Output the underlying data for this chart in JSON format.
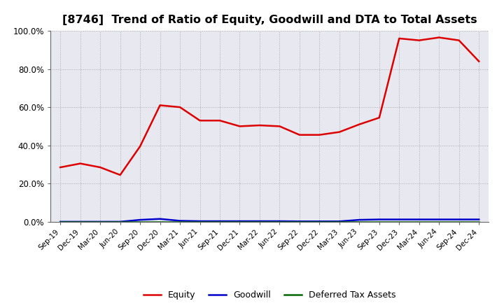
{
  "title": "[8746]  Trend of Ratio of Equity, Goodwill and DTA to Total Assets",
  "x_labels": [
    "Sep-19",
    "Dec-19",
    "Mar-20",
    "Jun-20",
    "Sep-20",
    "Dec-20",
    "Mar-21",
    "Jun-21",
    "Sep-21",
    "Dec-21",
    "Mar-22",
    "Jun-22",
    "Sep-22",
    "Dec-22",
    "Mar-23",
    "Jun-23",
    "Sep-23",
    "Dec-23",
    "Mar-24",
    "Jun-24",
    "Sep-24",
    "Dec-24"
  ],
  "equity": [
    0.285,
    0.305,
    0.285,
    0.245,
    0.395,
    0.61,
    0.6,
    0.53,
    0.53,
    0.5,
    0.505,
    0.5,
    0.455,
    0.455,
    0.47,
    0.51,
    0.545,
    0.96,
    0.95,
    0.965,
    0.95,
    0.84
  ],
  "goodwill": [
    0.0,
    0.0,
    0.0,
    0.0,
    0.01,
    0.015,
    0.005,
    0.003,
    0.003,
    0.003,
    0.003,
    0.003,
    0.002,
    0.002,
    0.002,
    0.01,
    0.012,
    0.012,
    0.012,
    0.012,
    0.012,
    0.012
  ],
  "dta": [
    0.0,
    0.0,
    0.0,
    0.0,
    0.0,
    0.0,
    0.0,
    0.0,
    0.0,
    0.0,
    0.0,
    0.0,
    0.0,
    0.0,
    0.0,
    0.0,
    0.0,
    0.0,
    0.0,
    0.0,
    0.0,
    0.0
  ],
  "equity_color": "#dd0000",
  "goodwill_color": "#0000cc",
  "dta_color": "#006600",
  "ylim": [
    0.0,
    1.0
  ],
  "yticks": [
    0.0,
    0.2,
    0.4,
    0.6,
    0.8,
    1.0
  ],
  "ytick_labels": [
    "0.0%",
    "20.0%",
    "40.0%",
    "60.0%",
    "80.0%",
    "100.0%"
  ],
  "background_color": "#ffffff",
  "plot_bg_color": "#e8e8f0",
  "grid_color": "#aaaaaa",
  "title_fontsize": 11.5,
  "legend_labels": [
    "Equity",
    "Goodwill",
    "Deferred Tax Assets"
  ]
}
